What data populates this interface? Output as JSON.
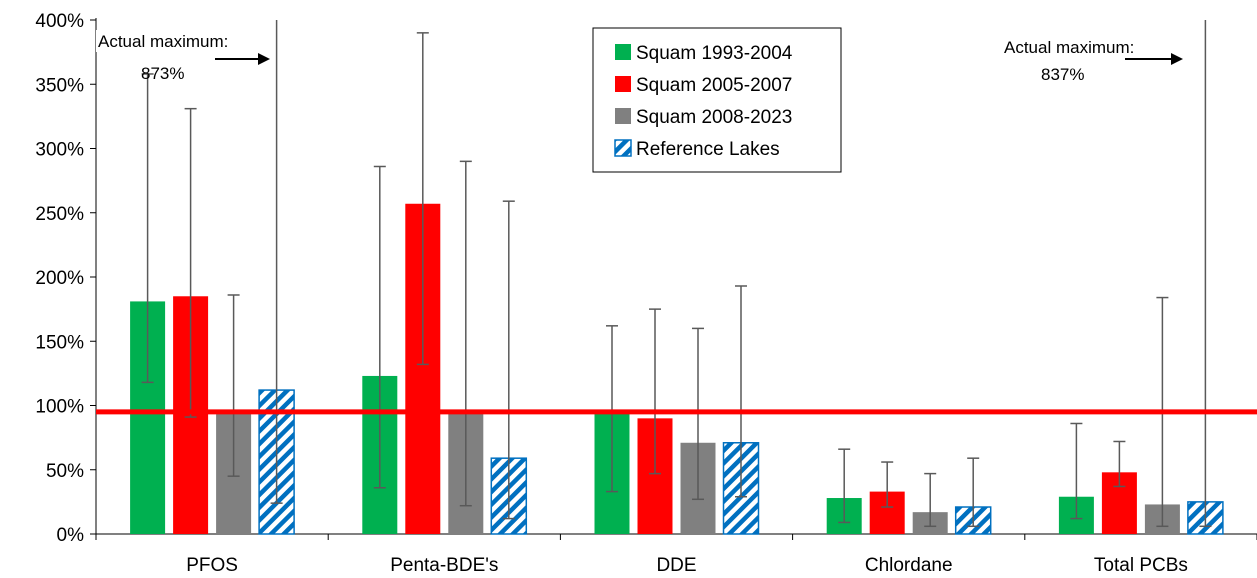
{
  "chart_data": {
    "type": "bar",
    "title": "",
    "xlabel": "",
    "ylabel": "",
    "ylim": [
      0,
      400
    ],
    "yticks": [
      0,
      50,
      100,
      150,
      200,
      250,
      300,
      350,
      400
    ],
    "ytick_labels": [
      "0%",
      "50%",
      "100%",
      "150%",
      "200%",
      "250%",
      "300%",
      "350%",
      "400%"
    ],
    "categories": [
      "PFOS",
      "Penta-BDE's",
      "DDE",
      "Chlordane",
      "Total PCBs"
    ],
    "reference_line": {
      "value": 95,
      "color": "#ff0000"
    },
    "series": [
      {
        "name": "Squam 1993-2004",
        "color": "#00b050",
        "pattern": "solid",
        "values": [
          181,
          123,
          96,
          28,
          29
        ],
        "err_low": [
          118,
          36,
          33,
          9,
          12
        ],
        "err_high": [
          358,
          286,
          162,
          66,
          86
        ]
      },
      {
        "name": "Squam 2005-2007",
        "color": "#ff0000",
        "pattern": "solid",
        "values": [
          185,
          257,
          90,
          33,
          48
        ],
        "err_low": [
          91,
          132,
          47,
          21,
          37
        ],
        "err_high": [
          331,
          390,
          175,
          56,
          72
        ]
      },
      {
        "name": "Squam 2008-2023",
        "color": "#808080",
        "pattern": "solid",
        "values": [
          95,
          95,
          71,
          17,
          23
        ],
        "err_low": [
          45,
          22,
          27,
          6,
          6
        ],
        "err_high": [
          186,
          290,
          160,
          47,
          184
        ]
      },
      {
        "name": "Reference Lakes",
        "color": "#0070c0",
        "pattern": "hatched",
        "values": [
          112,
          59,
          71,
          21,
          25
        ],
        "err_low": [
          24,
          12,
          29,
          6,
          6
        ],
        "err_high": [
          873,
          259,
          193,
          59,
          837
        ]
      }
    ],
    "annotations": [
      {
        "line1": "Actual maximum:",
        "line2": "873%",
        "category": "PFOS"
      },
      {
        "line1": "Actual maximum:",
        "line2": "837%",
        "category": "Total PCBs"
      }
    ],
    "legend": {
      "position": "top-center"
    },
    "grid": false
  }
}
